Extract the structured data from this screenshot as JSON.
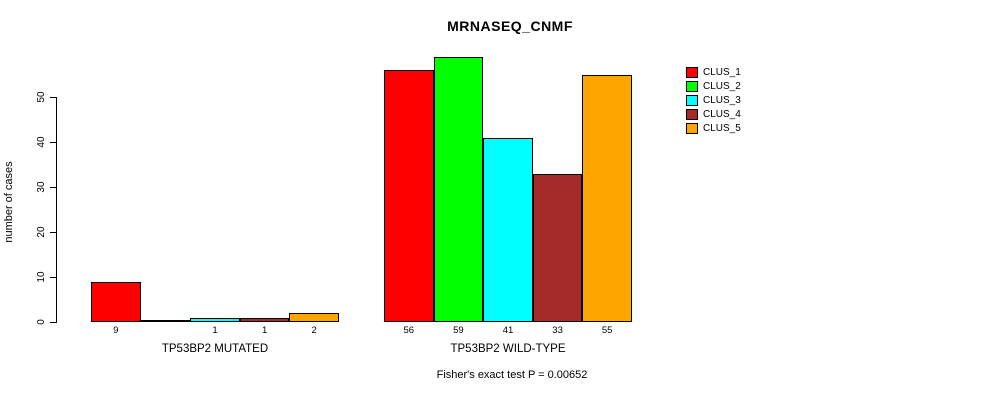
{
  "chart_data": {
    "type": "bar",
    "title": "MRNASEQ_CNMF",
    "ylabel": "number of cases",
    "xlabel": "",
    "footnote": "Fisher's exact test P = 0.00652",
    "grid": false,
    "legend_position": "right",
    "yticks": [
      0,
      10,
      20,
      30,
      40,
      50
    ],
    "ylim": [
      0,
      59
    ],
    "series": [
      {
        "name": "CLUS_1",
        "color": "#FF0000"
      },
      {
        "name": "CLUS_2",
        "color": "#00FF00"
      },
      {
        "name": "CLUS_3",
        "color": "#00FFFF"
      },
      {
        "name": "CLUS_4",
        "color": "#A52A2A"
      },
      {
        "name": "CLUS_5",
        "color": "#FFA500"
      }
    ],
    "groups": [
      {
        "label": "TP53BP2 MUTATED",
        "values": [
          9,
          0,
          1,
          1,
          2
        ],
        "bar_labels": [
          "9",
          "",
          "1",
          "1",
          "2"
        ]
      },
      {
        "label": "TP53BP2 WILD-TYPE",
        "values": [
          56,
          59,
          41,
          33,
          55
        ],
        "bar_labels": [
          "56",
          "59",
          "41",
          "33",
          "55"
        ]
      }
    ]
  }
}
